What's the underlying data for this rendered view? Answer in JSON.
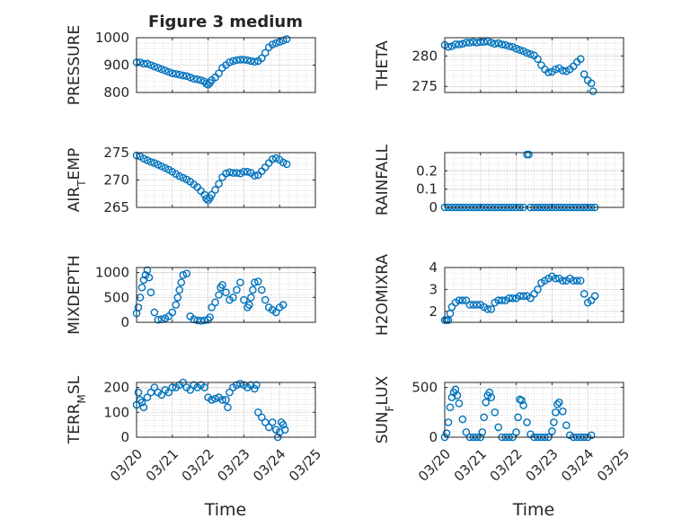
{
  "figure": {
    "title": "Figure 3 medium",
    "x_tick_labels": [
      "03/20",
      "03/21",
      "03/22",
      "03/23",
      "03/24",
      "03/25"
    ],
    "x_label": "Time",
    "marker_color": "#0072BD",
    "grid": "on (minor dotted)"
  },
  "chart_data": [
    {
      "type": "scatter",
      "ylabel": "PRESSURE",
      "title": "Figure 3 medium",
      "xlim": [
        0,
        5
      ],
      "ylim": [
        800,
        1000
      ],
      "yticks": [
        800,
        900,
        1000
      ],
      "x": [
        0.0,
        0.1,
        0.2,
        0.3,
        0.4,
        0.5,
        0.6,
        0.7,
        0.8,
        0.9,
        1.0,
        1.1,
        1.2,
        1.3,
        1.4,
        1.5,
        1.6,
        1.7,
        1.8,
        1.9,
        1.95,
        2.0,
        2.05,
        2.1,
        2.2,
        2.3,
        2.4,
        2.5,
        2.6,
        2.7,
        2.8,
        2.9,
        3.0,
        3.1,
        3.2,
        3.3,
        3.4,
        3.5,
        3.6,
        3.7,
        3.8,
        3.9,
        4.0,
        4.1,
        4.2
      ],
      "y": [
        910,
        910,
        905,
        905,
        900,
        895,
        890,
        885,
        880,
        875,
        870,
        868,
        865,
        862,
        860,
        855,
        850,
        848,
        845,
        840,
        832,
        828,
        835,
        845,
        855,
        870,
        890,
        900,
        910,
        915,
        918,
        920,
        920,
        918,
        915,
        912,
        915,
        925,
        945,
        965,
        975,
        980,
        985,
        990,
        995
      ]
    },
    {
      "type": "scatter",
      "ylabel": "THETA",
      "xlim": [
        0,
        5
      ],
      "ylim": [
        274,
        283
      ],
      "yticks": [
        275,
        280
      ],
      "x": [
        0.0,
        0.1,
        0.2,
        0.3,
        0.4,
        0.5,
        0.6,
        0.7,
        0.8,
        0.9,
        1.0,
        1.1,
        1.2,
        1.3,
        1.4,
        1.5,
        1.6,
        1.7,
        1.8,
        1.9,
        2.0,
        2.1,
        2.2,
        2.3,
        2.4,
        2.5,
        2.6,
        2.7,
        2.8,
        2.9,
        3.0,
        3.1,
        3.2,
        3.3,
        3.4,
        3.5,
        3.6,
        3.7,
        3.8,
        3.9,
        4.0,
        4.1,
        4.15
      ],
      "y": [
        281.8,
        281.5,
        281.6,
        281.9,
        281.9,
        282.0,
        282.2,
        282.2,
        282.3,
        282.2,
        282.3,
        282.3,
        282.4,
        282.2,
        282.0,
        282.1,
        281.9,
        281.8,
        281.6,
        281.5,
        281.2,
        281.0,
        280.8,
        280.5,
        280.3,
        280.1,
        279.5,
        278.5,
        277.8,
        277.3,
        277.4,
        277.8,
        278.0,
        277.6,
        277.5,
        277.8,
        278.3,
        279.0,
        279.5,
        277.0,
        276.0,
        275.5,
        274.2
      ]
    },
    {
      "type": "scatter",
      "ylabel": "AIR_TEMP",
      "xlim": [
        0,
        5
      ],
      "ylim": [
        265,
        275
      ],
      "yticks": [
        265,
        270,
        275
      ],
      "x": [
        0.0,
        0.1,
        0.2,
        0.3,
        0.4,
        0.5,
        0.6,
        0.7,
        0.8,
        0.9,
        1.0,
        1.1,
        1.2,
        1.3,
        1.4,
        1.5,
        1.6,
        1.7,
        1.8,
        1.9,
        1.95,
        2.0,
        2.05,
        2.1,
        2.2,
        2.3,
        2.4,
        2.5,
        2.6,
        2.7,
        2.8,
        2.9,
        3.0,
        3.1,
        3.2,
        3.3,
        3.4,
        3.5,
        3.6,
        3.7,
        3.8,
        3.9,
        4.0,
        4.1,
        4.2
      ],
      "y": [
        274.5,
        274.3,
        273.9,
        273.6,
        273.3,
        273.1,
        272.8,
        272.5,
        272.2,
        271.9,
        271.5,
        271.1,
        270.7,
        270.4,
        270.1,
        269.7,
        269.2,
        268.7,
        268.0,
        267.3,
        266.6,
        266.3,
        266.7,
        267.3,
        268.2,
        269.3,
        270.5,
        271.2,
        271.4,
        271.3,
        271.3,
        271.2,
        271.5,
        271.5,
        271.3,
        270.8,
        270.9,
        271.6,
        272.3,
        273.1,
        273.8,
        274.0,
        273.7,
        273.2,
        272.9
      ]
    },
    {
      "type": "scatter",
      "ylabel": "RAINFALL",
      "xlim": [
        0,
        5
      ],
      "ylim": [
        0,
        0.3
      ],
      "yticks": [
        0,
        0.1,
        0.2
      ],
      "x": [
        0.0,
        0.1,
        0.2,
        0.3,
        0.4,
        0.5,
        0.6,
        0.7,
        0.8,
        0.9,
        1.0,
        1.1,
        1.2,
        1.3,
        1.4,
        1.5,
        1.6,
        1.7,
        1.8,
        1.9,
        2.0,
        2.1,
        2.2,
        2.3,
        2.35,
        2.4,
        2.5,
        2.6,
        2.7,
        2.8,
        2.9,
        3.0,
        3.1,
        3.2,
        3.3,
        3.4,
        3.5,
        3.6,
        3.7,
        3.8,
        3.9,
        4.0,
        4.1,
        4.2
      ],
      "y": [
        0,
        0,
        0,
        0,
        0,
        0,
        0,
        0,
        0,
        0,
        0,
        0,
        0,
        0,
        0,
        0,
        0,
        0,
        0,
        0,
        0,
        0,
        0,
        0.29,
        0.29,
        0,
        0,
        0,
        0,
        0,
        0,
        0,
        0,
        0,
        0,
        0,
        0,
        0,
        0,
        0,
        0,
        0,
        0,
        0
      ]
    },
    {
      "type": "scatter",
      "ylabel": "MIXDEPTH",
      "xlim": [
        0,
        5
      ],
      "ylim": [
        0,
        1100
      ],
      "yticks": [
        0,
        500,
        1000
      ],
      "x": [
        0.0,
        0.05,
        0.1,
        0.15,
        0.2,
        0.25,
        0.3,
        0.35,
        0.4,
        0.5,
        0.6,
        0.7,
        0.8,
        0.9,
        1.0,
        1.1,
        1.15,
        1.2,
        1.25,
        1.3,
        1.4,
        1.5,
        1.6,
        1.7,
        1.8,
        1.9,
        2.0,
        2.05,
        2.1,
        2.2,
        2.3,
        2.35,
        2.4,
        2.5,
        2.6,
        2.7,
        2.8,
        2.9,
        3.0,
        3.1,
        3.15,
        3.2,
        3.25,
        3.3,
        3.4,
        3.5,
        3.6,
        3.7,
        3.8,
        3.9,
        4.0,
        4.1
      ],
      "y": [
        180,
        300,
        500,
        700,
        850,
        950,
        1050,
        900,
        600,
        200,
        50,
        60,
        80,
        120,
        200,
        350,
        500,
        650,
        800,
        950,
        980,
        120,
        60,
        40,
        30,
        40,
        50,
        100,
        300,
        400,
        550,
        700,
        750,
        600,
        450,
        500,
        650,
        800,
        450,
        300,
        350,
        500,
        650,
        800,
        820,
        650,
        450,
        300,
        250,
        200,
        300,
        350
      ]
    },
    {
      "type": "scatter",
      "ylabel": "H2OMIXRA",
      "xlim": [
        0,
        5
      ],
      "ylim": [
        1.5,
        4
      ],
      "yticks": [
        2,
        3,
        4
      ],
      "x": [
        0.0,
        0.05,
        0.1,
        0.15,
        0.2,
        0.3,
        0.4,
        0.5,
        0.6,
        0.7,
        0.8,
        0.9,
        1.0,
        1.1,
        1.2,
        1.3,
        1.4,
        1.5,
        1.6,
        1.7,
        1.8,
        1.9,
        2.0,
        2.1,
        2.2,
        2.3,
        2.4,
        2.5,
        2.6,
        2.7,
        2.8,
        2.9,
        3.0,
        3.1,
        3.2,
        3.3,
        3.4,
        3.5,
        3.6,
        3.7,
        3.8,
        3.9,
        4.0,
        4.1,
        4.2
      ],
      "y": [
        1.6,
        1.6,
        1.6,
        1.9,
        2.2,
        2.4,
        2.5,
        2.5,
        2.5,
        2.3,
        2.3,
        2.3,
        2.3,
        2.2,
        2.1,
        2.1,
        2.4,
        2.5,
        2.5,
        2.5,
        2.6,
        2.6,
        2.6,
        2.7,
        2.7,
        2.7,
        2.6,
        2.8,
        3.0,
        3.3,
        3.4,
        3.5,
        3.6,
        3.5,
        3.5,
        3.4,
        3.4,
        3.5,
        3.4,
        3.4,
        3.4,
        2.8,
        2.4,
        2.5,
        2.7
      ]
    },
    {
      "type": "scatter",
      "ylabel": "TERR_MSL",
      "xlim": [
        0,
        5
      ],
      "ylim": [
        0,
        220
      ],
      "yticks": [
        0,
        100,
        200
      ],
      "x": [
        0.0,
        0.05,
        0.1,
        0.15,
        0.2,
        0.3,
        0.4,
        0.5,
        0.6,
        0.7,
        0.8,
        0.9,
        1.0,
        1.1,
        1.2,
        1.3,
        1.4,
        1.5,
        1.6,
        1.7,
        1.8,
        1.9,
        2.0,
        2.1,
        2.2,
        2.3,
        2.4,
        2.5,
        2.55,
        2.6,
        2.7,
        2.8,
        2.9,
        3.0,
        3.1,
        3.2,
        3.3,
        3.35,
        3.4,
        3.5,
        3.6,
        3.7,
        3.8,
        3.9,
        3.95,
        4.0,
        4.05,
        4.1,
        4.15
      ],
      "y": [
        130,
        180,
        150,
        140,
        120,
        160,
        180,
        200,
        180,
        170,
        190,
        180,
        200,
        200,
        210,
        220,
        200,
        190,
        210,
        200,
        210,
        200,
        160,
        150,
        155,
        160,
        150,
        150,
        120,
        180,
        200,
        210,
        215,
        210,
        200,
        210,
        195,
        210,
        100,
        80,
        60,
        40,
        60,
        30,
        0,
        20,
        60,
        50,
        30
      ]
    },
    {
      "type": "scatter",
      "ylabel": "SUN_FLUX",
      "xlim": [
        0,
        5
      ],
      "ylim": [
        0,
        550
      ],
      "yticks": [
        0,
        500
      ],
      "x": [
        0.0,
        0.05,
        0.1,
        0.15,
        0.2,
        0.25,
        0.3,
        0.35,
        0.4,
        0.5,
        0.6,
        0.7,
        0.8,
        0.9,
        1.0,
        1.05,
        1.1,
        1.15,
        1.2,
        1.25,
        1.3,
        1.4,
        1.5,
        1.6,
        1.7,
        1.8,
        1.9,
        2.0,
        2.05,
        2.1,
        2.15,
        2.2,
        2.3,
        2.4,
        2.5,
        2.6,
        2.7,
        2.8,
        2.9,
        3.0,
        3.05,
        3.1,
        3.15,
        3.2,
        3.3,
        3.4,
        3.5,
        3.6,
        3.7,
        3.8,
        3.9,
        4.0,
        4.1
      ],
      "y": [
        0,
        40,
        150,
        300,
        400,
        450,
        480,
        420,
        340,
        180,
        50,
        0,
        0,
        0,
        0,
        50,
        200,
        350,
        420,
        450,
        400,
        250,
        100,
        0,
        0,
        0,
        0,
        50,
        200,
        380,
        370,
        320,
        150,
        30,
        0,
        0,
        0,
        0,
        0,
        60,
        150,
        250,
        330,
        350,
        260,
        120,
        20,
        0,
        0,
        0,
        0,
        0,
        20
      ]
    }
  ]
}
